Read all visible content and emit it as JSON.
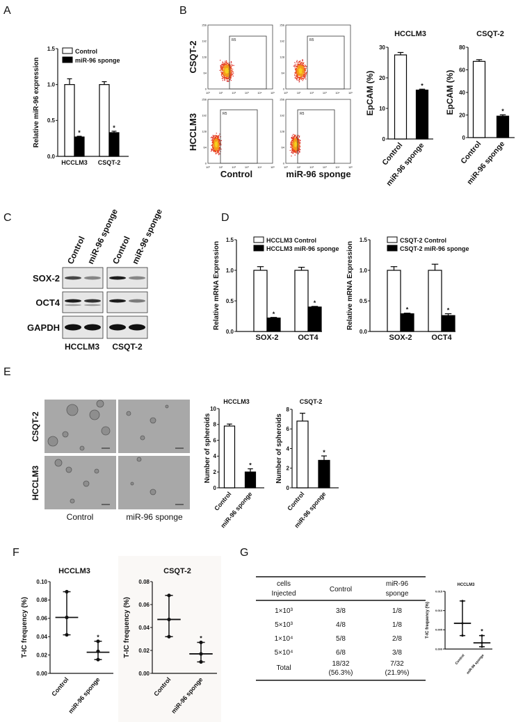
{
  "figure": {
    "panel_labels": [
      "A",
      "B",
      "C",
      "D",
      "E",
      "F",
      "G"
    ]
  },
  "flow": {
    "row_labels": [
      "CSQT-2",
      "HCCLM3"
    ],
    "col_labels": [
      "Control",
      "miR-96 sponge"
    ],
    "gate": "R5",
    "y_ticks": [
      "0",
      "64",
      "128",
      "192",
      "256"
    ],
    "x_ticks": [
      "10⁰",
      "10¹",
      "10²",
      "10³",
      "10⁴",
      "10⁵"
    ]
  },
  "western": {
    "lanes": [
      "Control",
      "miR-96 sponge",
      "Control",
      "miR-96 sponge"
    ],
    "proteins": [
      "SOX-2",
      "OCT4",
      "GAPDH"
    ],
    "cell_lines": [
      "HCCLM3",
      "CSQT-2"
    ]
  },
  "spheroid_images": {
    "row_labels": [
      "CSQT-2",
      "HCCLM3"
    ],
    "col_labels": [
      "Control",
      "miR-96 sponge"
    ]
  },
  "table": {
    "headers": [
      [
        "cells",
        "Injected"
      ],
      [
        "Control"
      ],
      [
        "miR-96",
        "sponge"
      ]
    ],
    "rows": [
      [
        [
          "1×10³"
        ],
        [
          "3/8"
        ],
        [
          "1/8"
        ]
      ],
      [
        [
          "5×10³"
        ],
        [
          "4/8"
        ],
        [
          "1/8"
        ]
      ],
      [
        [
          "1×10⁴"
        ],
        [
          "5/8"
        ],
        [
          "2/8"
        ]
      ],
      [
        [
          "5×10⁴"
        ],
        [
          "6/8"
        ],
        [
          "3/8"
        ]
      ],
      [
        [
          "Total"
        ],
        [
          "18/32",
          "(56.3%)"
        ],
        [
          "7/32",
          "(21.9%)"
        ]
      ]
    ]
  },
  "chart_data": [
    {
      "panel": "A",
      "type": "bar",
      "title": "",
      "ylabel": "Relative miR-96 expression",
      "categories": [
        "HCCLM3",
        "CSQT-2"
      ],
      "ylim": [
        0,
        1.5
      ],
      "yticks": [
        "0.0",
        "0.5",
        "1.0",
        "1.5"
      ],
      "ytick_values": [
        0,
        0.5,
        1,
        1.5
      ],
      "series": [
        {
          "name": "Control",
          "values": [
            1.0,
            1.0
          ],
          "errors": [
            0.08,
            0.04
          ],
          "marks": [
            "",
            ""
          ]
        },
        {
          "name": "miR-96 sponge",
          "values": [
            0.27,
            0.33
          ],
          "errors": [
            0.01,
            0.02
          ],
          "marks": [
            "*",
            "*"
          ]
        }
      ],
      "legend": "top-left"
    },
    {
      "panel": "B",
      "type": "bar",
      "title": "HCCLM3",
      "ylabel": "EpCAM (%)",
      "categories": [
        "Control",
        "miR-96 sponge"
      ],
      "ylim": [
        0,
        30
      ],
      "yticks": [
        "0",
        "10",
        "20",
        "30"
      ],
      "ytick_values": [
        0,
        10,
        20,
        30
      ],
      "values": [
        27.5,
        16.0
      ],
      "errors": [
        0.8,
        0.3
      ],
      "marks": [
        "",
        "*"
      ]
    },
    {
      "panel": "B",
      "type": "bar",
      "title": "CSQT-2",
      "ylabel": "EpCAM (%)",
      "categories": [
        "Control",
        "miR-96 sponge"
      ],
      "ylim": [
        0,
        80
      ],
      "yticks": [
        "0",
        "20",
        "40",
        "60",
        "80"
      ],
      "ytick_values": [
        0,
        20,
        40,
        60,
        80
      ],
      "values": [
        67.5,
        19.0
      ],
      "errors": [
        1.5,
        1.2
      ],
      "marks": [
        "",
        "*"
      ]
    },
    {
      "panel": "D",
      "type": "bar",
      "title": "",
      "ylabel": "Relative mRNA Expression",
      "categories": [
        "SOX-2",
        "OCT4"
      ],
      "ylim": [
        0,
        1.5
      ],
      "yticks": [
        "0.0",
        "0.5",
        "1.0",
        "1.5"
      ],
      "ytick_values": [
        0,
        0.5,
        1,
        1.5
      ],
      "series": [
        {
          "name": "HCCLM3 Control",
          "values": [
            1.0,
            1.0
          ],
          "errors": [
            0.06,
            0.05
          ],
          "marks": [
            "",
            ""
          ]
        },
        {
          "name": "HCCLM3 miR-96 sponge",
          "values": [
            0.22,
            0.4
          ],
          "errors": [
            0.01,
            0.01
          ],
          "marks": [
            "*",
            "*"
          ]
        }
      ],
      "legend": "top-left"
    },
    {
      "panel": "D",
      "type": "bar",
      "title": "",
      "ylabel": "Relative mRNA Expression",
      "categories": [
        "SOX-2",
        "OCT4"
      ],
      "ylim": [
        0,
        1.5
      ],
      "yticks": [
        "0.0",
        "0.5",
        "1.0",
        "1.5"
      ],
      "ytick_values": [
        0,
        0.5,
        1,
        1.5
      ],
      "series": [
        {
          "name": "CSQT-2 Control",
          "values": [
            1.0,
            1.0
          ],
          "errors": [
            0.06,
            0.1
          ],
          "marks": [
            "",
            ""
          ]
        },
        {
          "name": "CSQT-2 miR-96 sponge",
          "values": [
            0.29,
            0.26
          ],
          "errors": [
            0.01,
            0.03
          ],
          "marks": [
            "*",
            "*"
          ]
        }
      ],
      "legend": "top-left"
    },
    {
      "panel": "E",
      "type": "bar",
      "title": "HCCLM3",
      "ylabel": "Number of spheroids",
      "categories": [
        "Control",
        "miR-96 sponge"
      ],
      "ylim": [
        0,
        10
      ],
      "yticks": [
        "0",
        "2",
        "4",
        "6",
        "8",
        "10"
      ],
      "ytick_values": [
        0,
        2,
        4,
        6,
        8,
        10
      ],
      "values": [
        7.8,
        2.0
      ],
      "errors": [
        0.25,
        0.4
      ],
      "marks": [
        "",
        "*"
      ]
    },
    {
      "panel": "E",
      "type": "bar",
      "title": "CSQT-2",
      "ylabel": "Number of spheroids",
      "categories": [
        "Control",
        "miR-96 sponge"
      ],
      "ylim": [
        0,
        8
      ],
      "yticks": [
        "0",
        "2",
        "4",
        "6",
        "8"
      ],
      "ytick_values": [
        0,
        2,
        4,
        6,
        8
      ],
      "values": [
        6.8,
        2.8
      ],
      "errors": [
        0.8,
        0.45
      ],
      "marks": [
        "",
        "*"
      ]
    },
    {
      "panel": "F",
      "type": "scatter",
      "title": "HCCLM3",
      "ylabel": "T-IC frequency (%)",
      "categories": [
        "Control",
        "miR-96 sponge"
      ],
      "ylim": [
        0,
        0.1
      ],
      "yticks": [
        "0.00",
        "0.02",
        "0.04",
        "0.06",
        "0.08",
        "0.10"
      ],
      "ytick_values": [
        0,
        0.02,
        0.04,
        0.06,
        0.08,
        0.1
      ],
      "points": [
        [
          0.089,
          0.061,
          0.042
        ],
        [
          0.035,
          0.024,
          0.015
        ]
      ],
      "means": [
        0.061,
        0.023
      ],
      "marks": [
        "",
        "*"
      ]
    },
    {
      "panel": "F",
      "type": "scatter",
      "title": "CSQT-2",
      "ylabel": "T-IC frequency (%)",
      "categories": [
        "Control",
        "miR-96 sponge"
      ],
      "ylim": [
        0,
        0.08
      ],
      "yticks": [
        "0.00",
        "0.02",
        "0.04",
        "0.06",
        "0.08"
      ],
      "ytick_values": [
        0,
        0.02,
        0.04,
        0.06,
        0.08
      ],
      "points": [
        [
          0.068,
          0.047,
          0.032
        ],
        [
          0.027,
          0.017,
          0.01
        ]
      ],
      "means": [
        0.047,
        0.017
      ],
      "marks": [
        "",
        "*"
      ]
    },
    {
      "panel": "G",
      "type": "scatter",
      "title": "HCCLM3",
      "ylabel": "T-IC frequency (%)",
      "categories": [
        "Control",
        "miR-96 sponge"
      ],
      "ylim": [
        0,
        0.015
      ],
      "yticks": [
        "0.000",
        "0.005",
        "0.010",
        "0.015"
      ],
      "ytick_values": [
        0,
        0.005,
        0.01,
        0.015
      ],
      "points": [
        [
          0.0125,
          0.0067,
          0.0035
        ],
        [
          0.0035,
          0.0016,
          0.0006
        ]
      ],
      "means": [
        0.0067,
        0.0016
      ],
      "marks": [
        "",
        "*"
      ]
    }
  ]
}
